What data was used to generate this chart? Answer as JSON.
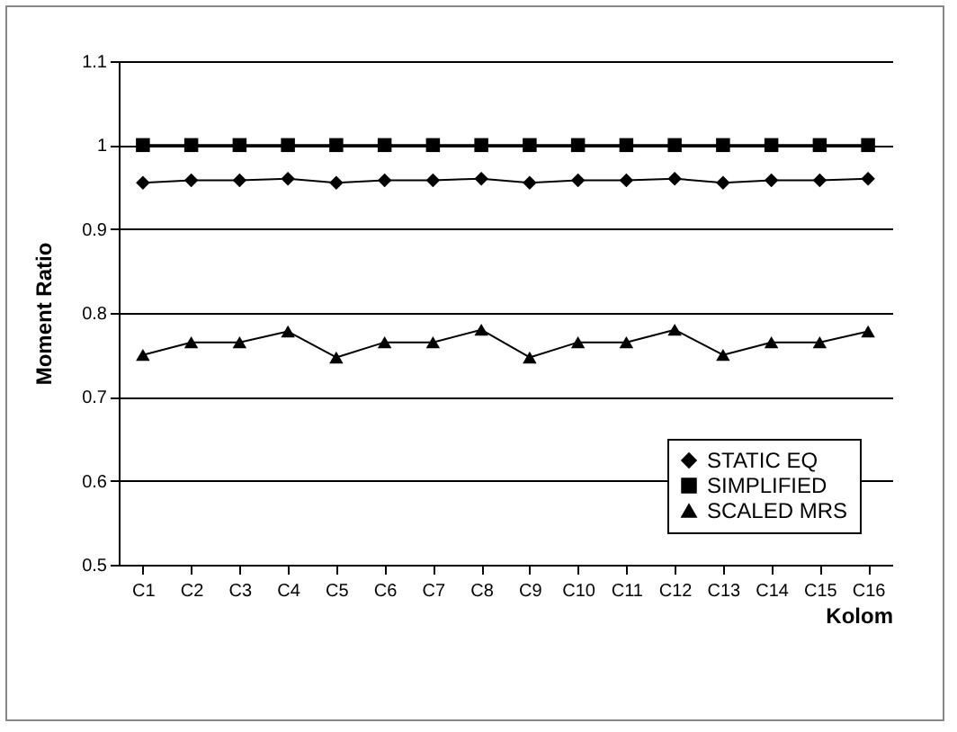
{
  "chart_data": {
    "type": "line",
    "xlabel": "Kolom",
    "ylabel": "Moment Ratio",
    "categories": [
      "C1",
      "C2",
      "C3",
      "C4",
      "C5",
      "C6",
      "C7",
      "C8",
      "C9",
      "C10",
      "C11",
      "C12",
      "C13",
      "C14",
      "C15",
      "C16"
    ],
    "series": [
      {
        "name": "STATIC EQ",
        "color": "#000000",
        "marker": "diamond",
        "values": [
          0.955,
          0.958,
          0.958,
          0.96,
          0.955,
          0.958,
          0.958,
          0.96,
          0.955,
          0.958,
          0.958,
          0.96,
          0.955,
          0.958,
          0.958,
          0.96
        ]
      },
      {
        "name": "SIMPLIFIED",
        "color": "#000000",
        "marker": "square",
        "values": [
          1,
          1,
          1,
          1,
          1,
          1,
          1,
          1,
          1,
          1,
          1,
          1,
          1,
          1,
          1,
          1
        ]
      },
      {
        "name": "SCALED MRS",
        "color": "#000000",
        "marker": "triangle",
        "values": [
          0.75,
          0.765,
          0.765,
          0.778,
          0.747,
          0.765,
          0.765,
          0.78,
          0.747,
          0.765,
          0.765,
          0.78,
          0.75,
          0.765,
          0.765,
          0.778
        ]
      }
    ],
    "ylim": [
      0.5,
      1.1
    ],
    "yticks": [
      0.5,
      0.6,
      0.7,
      0.8,
      0.9,
      1,
      1.1
    ],
    "grid": "y",
    "legend": "bottom right",
    "line_style": "solid"
  }
}
